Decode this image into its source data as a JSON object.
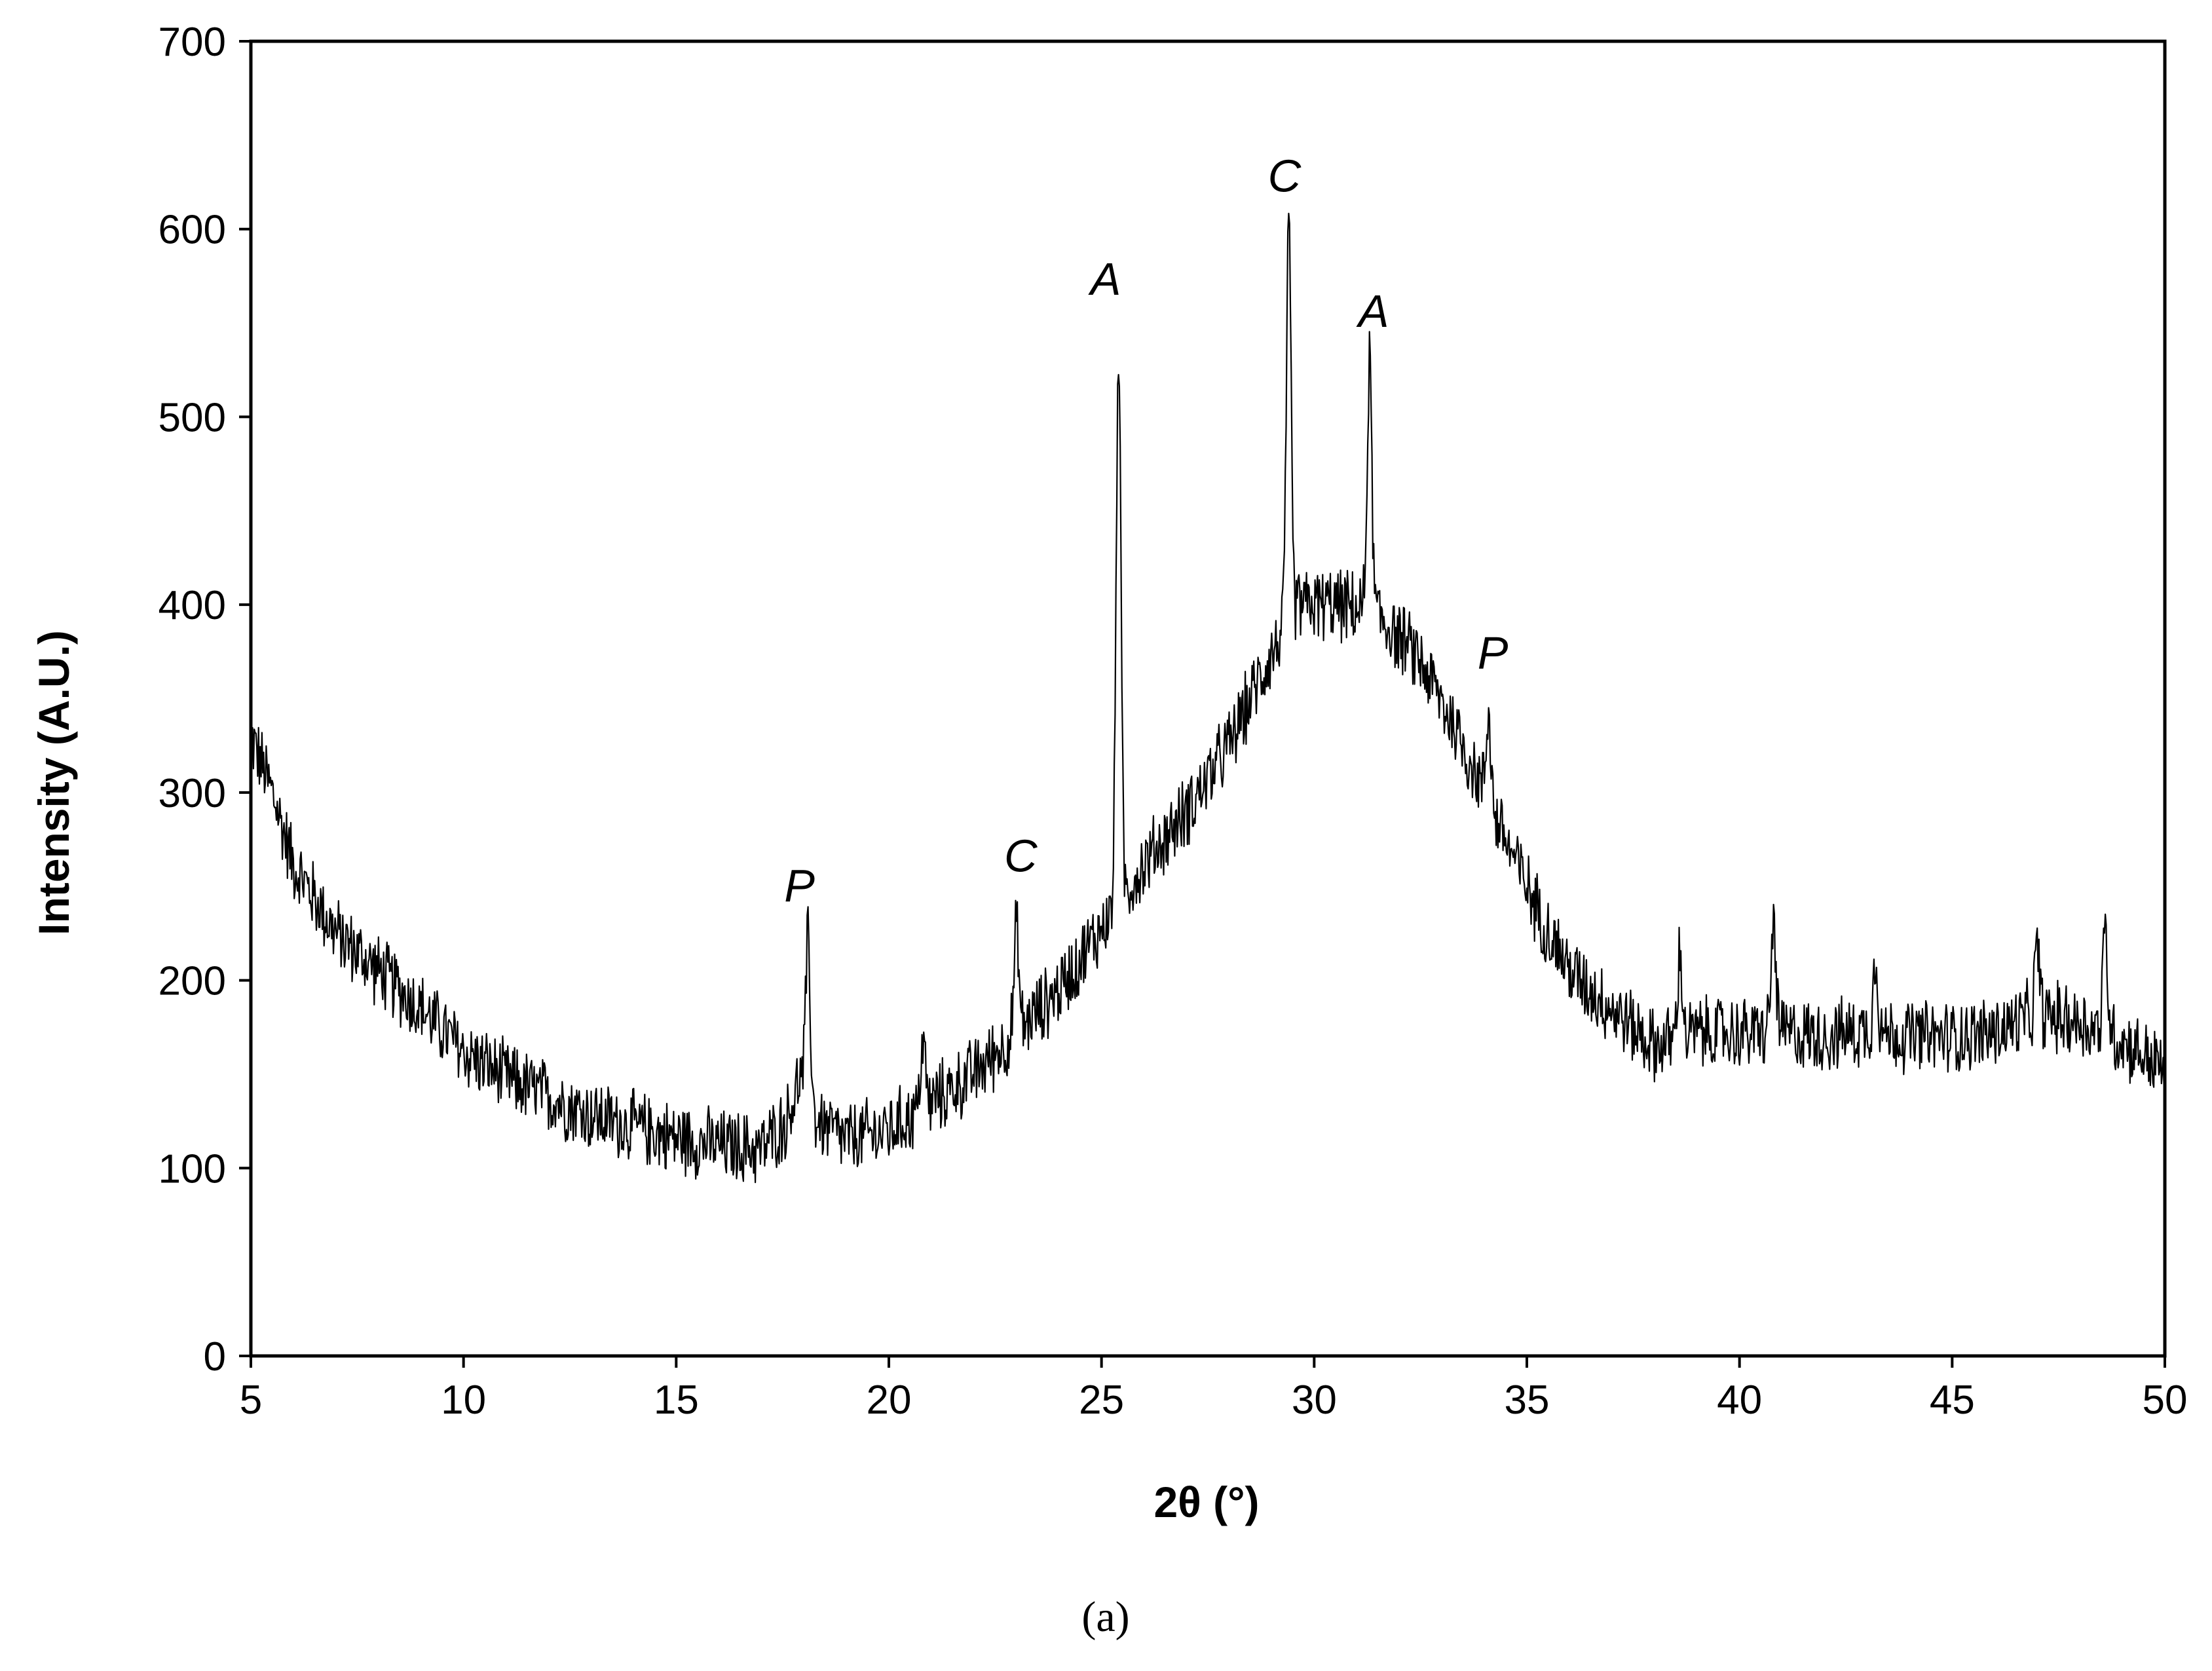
{
  "chart_data": {
    "type": "line",
    "title": "",
    "xlabel": "2θ (°)",
    "ylabel": "Intensity (A.U.)",
    "xlim": [
      5,
      50
    ],
    "ylim": [
      0,
      700
    ],
    "xticks": [
      5,
      10,
      15,
      20,
      25,
      30,
      35,
      40,
      45,
      50
    ],
    "yticks": [
      0,
      100,
      200,
      300,
      400,
      500,
      600,
      700
    ],
    "grid": false,
    "legend": "none",
    "line_color": "#000000",
    "baseline": {
      "x": [
        5.0,
        5.5,
        6,
        7,
        8,
        9,
        10,
        11,
        12,
        13,
        14,
        15,
        16,
        17,
        17.6,
        17.9,
        18.3,
        19,
        20,
        21,
        22,
        23,
        24,
        25,
        26,
        27,
        28,
        28.8,
        29.6,
        30.5,
        31.5,
        32.5,
        33.3,
        34.0,
        34.6,
        35.2,
        36,
        37,
        38,
        39,
        40,
        41,
        42,
        43,
        44,
        45,
        46,
        47,
        48,
        49,
        50
      ],
      "y": [
        330,
        300,
        262,
        225,
        205,
        185,
        162,
        148,
        138,
        128,
        122,
        116,
        112,
        110,
        125,
        148,
        125,
        115,
        120,
        135,
        150,
        172,
        195,
        228,
        262,
        290,
        325,
        365,
        400,
        400,
        395,
        370,
        335,
        300,
        270,
        240,
        205,
        185,
        165,
        172,
        172,
        172,
        170,
        173,
        170,
        170,
        172,
        182,
        178,
        168,
        152
      ]
    },
    "peaks": [
      {
        "x": 18.1,
        "y": 227
      },
      {
        "x": 20.8,
        "y": 175
      },
      {
        "x": 23.0,
        "y": 234
      },
      {
        "x": 25.4,
        "y": 546
      },
      {
        "x": 29.4,
        "y": 603
      },
      {
        "x": 31.3,
        "y": 535
      },
      {
        "x": 34.1,
        "y": 351
      },
      {
        "x": 38.6,
        "y": 220
      },
      {
        "x": 40.8,
        "y": 238
      },
      {
        "x": 43.2,
        "y": 220
      },
      {
        "x": 47.0,
        "y": 223
      },
      {
        "x": 48.6,
        "y": 232
      }
    ],
    "noise_amplitude": 22,
    "point_count": 2250,
    "annotations": [
      {
        "text": "P",
        "x": 17.9,
        "y": 242
      },
      {
        "text": "C",
        "x": 23.1,
        "y": 258
      },
      {
        "text": "A",
        "x": 25.1,
        "y": 565
      },
      {
        "text": "C",
        "x": 29.3,
        "y": 620
      },
      {
        "text": "A",
        "x": 31.4,
        "y": 548
      },
      {
        "text": "P",
        "x": 34.2,
        "y": 366
      }
    ]
  },
  "caption": "(a)"
}
